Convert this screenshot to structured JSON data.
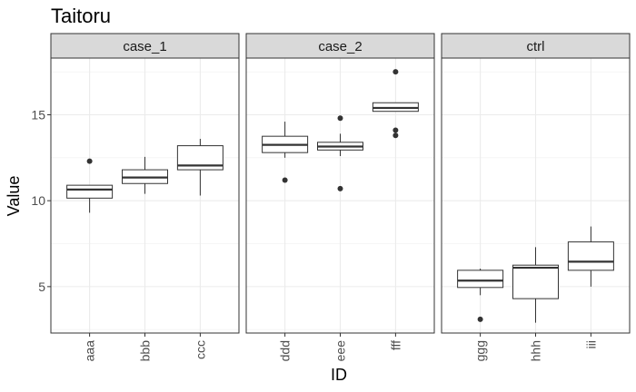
{
  "chart_data": {
    "type": "boxplot",
    "title": "Taitoru",
    "xlabel": "ID",
    "ylabel": "Value",
    "ylim": [
      2.3,
      18.3
    ],
    "yticks": [
      5,
      10,
      15
    ],
    "grid": true,
    "facets": [
      {
        "label": "case_1",
        "groups": [
          {
            "id": "aaa",
            "min": 9.3,
            "q1": 10.15,
            "median": 10.65,
            "q3": 10.9,
            "max": 10.9,
            "outliers": [
              12.3
            ]
          },
          {
            "id": "bbb",
            "min": 10.4,
            "q1": 11.0,
            "median": 11.35,
            "q3": 11.8,
            "max": 12.55,
            "outliers": []
          },
          {
            "id": "ccc",
            "min": 10.3,
            "q1": 11.8,
            "median": 12.05,
            "q3": 13.2,
            "max": 13.6,
            "outliers": []
          }
        ]
      },
      {
        "label": "case_2",
        "groups": [
          {
            "id": "ddd",
            "min": 12.5,
            "q1": 12.8,
            "median": 13.25,
            "q3": 13.75,
            "max": 14.6,
            "outliers": [
              11.2
            ]
          },
          {
            "id": "eee",
            "min": 12.6,
            "q1": 12.95,
            "median": 13.15,
            "q3": 13.4,
            "max": 13.9,
            "outliers": [
              10.7,
              14.8
            ]
          },
          {
            "id": "fff",
            "min": 15.2,
            "q1": 15.2,
            "median": 15.4,
            "q3": 15.7,
            "max": 15.7,
            "outliers": [
              17.5,
              14.1,
              13.8
            ]
          }
        ]
      },
      {
        "label": "ctrl",
        "groups": [
          {
            "id": "ggg",
            "min": 4.5,
            "q1": 4.95,
            "median": 5.35,
            "q3": 5.95,
            "max": 6.05,
            "outliers": [
              3.1
            ]
          },
          {
            "id": "hhh",
            "min": 2.9,
            "q1": 4.3,
            "median": 6.1,
            "q3": 6.25,
            "max": 7.3,
            "outliers": []
          },
          {
            "id": "iii",
            "min": 5.0,
            "q1": 5.95,
            "median": 6.45,
            "q3": 7.6,
            "max": 8.5,
            "outliers": []
          }
        ]
      }
    ]
  }
}
